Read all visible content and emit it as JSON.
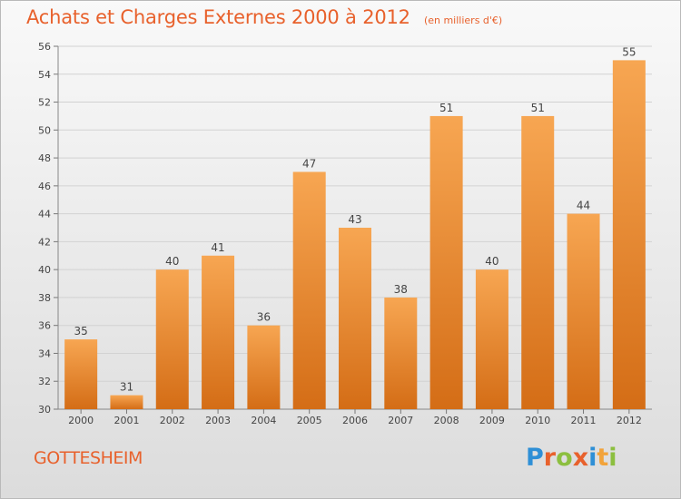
{
  "title": "Achats et Charges Externes 2000 à 2012",
  "subtitle": "(en milliers d'€)",
  "commune": "GOTTESHEIM",
  "logo": {
    "text": "Proxiti",
    "letters": [
      {
        "char": "P",
        "color": "#2e8fd6"
      },
      {
        "char": "r",
        "color": "#e8612c"
      },
      {
        "char": "o",
        "color": "#8cbf3f"
      },
      {
        "char": "x",
        "color": "#e8612c"
      },
      {
        "char": "i",
        "color": "#2e8fd6"
      },
      {
        "char": "t",
        "color": "#f2a33a"
      },
      {
        "char": "i",
        "color": "#8cbf3f"
      }
    ]
  },
  "colors": {
    "bar_top": "#f7a652",
    "bar_bottom": "#d46d16",
    "accent": "#e8612c",
    "grid": "#d2d2d2"
  },
  "chart_data": {
    "type": "bar",
    "categories": [
      "2000",
      "2001",
      "2002",
      "2003",
      "2004",
      "2005",
      "2006",
      "2007",
      "2008",
      "2009",
      "2010",
      "2011",
      "2012"
    ],
    "values": [
      35,
      31,
      40,
      41,
      36,
      47,
      43,
      38,
      51,
      40,
      51,
      44,
      55
    ],
    "ylim": [
      30,
      56
    ],
    "yticks": [
      30,
      32,
      34,
      36,
      38,
      40,
      42,
      44,
      46,
      48,
      50,
      52,
      54,
      56
    ],
    "grid": true,
    "data_labels": true
  }
}
